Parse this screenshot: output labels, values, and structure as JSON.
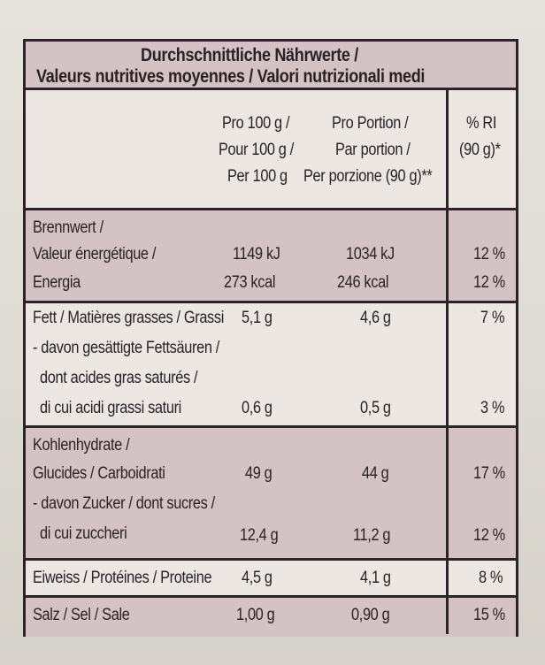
{
  "header": {
    "line1": "Durchschnittliche Nährwerte /",
    "line2": "Valeurs nutritives moyennes / Valori nutrizionali medi"
  },
  "columns": {
    "per100": [
      "Pro 100 g /",
      "Pour 100 g /",
      "Per 100 g"
    ],
    "portion": [
      "Pro Portion /",
      "Par portion /",
      "Per porzione (90 g)**"
    ],
    "ri": [
      "% RI",
      "(90 g)*"
    ]
  },
  "rows": {
    "energy": {
      "labels": [
        "Brennwert /",
        "Valeur énergétique /",
        "Energia"
      ],
      "kj": {
        "per100": "1149 kJ",
        "portion": "1034 kJ",
        "ri": "12 %"
      },
      "kcal": {
        "per100": "273 kcal",
        "portion": "246 kcal",
        "ri": "12 %"
      }
    },
    "fat": {
      "label": "Fett / Matières grasses / Grassi",
      "per100": "5,1 g",
      "portion": "4,6 g",
      "ri": "7 %",
      "sat_labels": [
        "- davon gesättigte Fettsäuren /",
        "dont acides gras saturés /",
        "di cui acidi grassi saturi"
      ],
      "sat": {
        "per100": "0,6 g",
        "portion": "0,5 g",
        "ri": "3 %"
      }
    },
    "carbs": {
      "labels": [
        "Kohlenhydrate /",
        "Glucides / Carboidrati"
      ],
      "per100": "49 g",
      "portion": "44 g",
      "ri": "17 %",
      "sugar_labels": [
        "- davon Zucker / dont sucres /",
        "di cui zuccheri"
      ],
      "sugar": {
        "per100": "12,4 g",
        "portion": "11,2 g",
        "ri": "12 %"
      }
    },
    "protein": {
      "label": "Eiweiss / Protéines / Proteine",
      "per100": "4,5 g",
      "portion": "4,1 g",
      "ri": "8 %"
    },
    "salt": {
      "label": "Salz / Sel / Sale",
      "per100": "1,00 g",
      "portion": "0,90 g",
      "ri": "15 %"
    }
  }
}
